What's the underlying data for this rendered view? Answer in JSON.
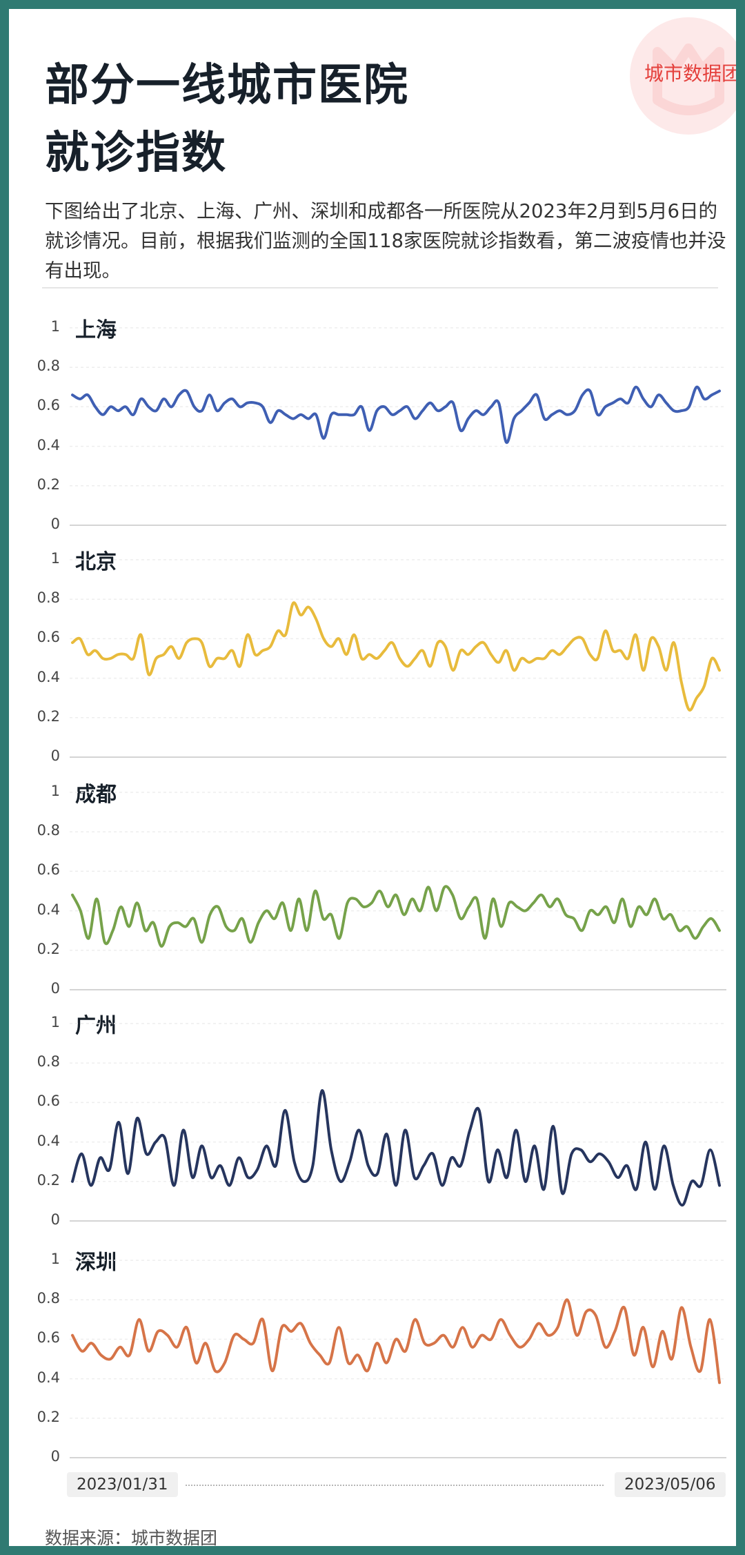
{
  "brand": {
    "name": "城市数据团"
  },
  "header": {
    "title_line1": "部分一线城市医院",
    "title_line2": "就诊指数",
    "intro": "下图给出了北京、上海、广州、深圳和成都各一所医院从2023年2月到5月6日的就诊情况。目前，根据我们监测的全国118家医院就诊指数看，第二波疫情也并没有出现。"
  },
  "footer": {
    "date_start": "2023/01/31",
    "date_end": "2023/05/06",
    "source": "数据来源：城市数据团"
  },
  "chart_data": [
    {
      "type": "line",
      "title": "上海",
      "color": "#3f5fb3",
      "ylim": [
        0,
        1
      ],
      "yticks": [
        "1",
        "0.8",
        "0.6",
        "0.4",
        "0.2",
        "0"
      ],
      "x_start": "2023/01/31",
      "x_end": "2023/05/06",
      "values": [
        0.66,
        0.64,
        0.66,
        0.6,
        0.56,
        0.6,
        0.58,
        0.6,
        0.56,
        0.64,
        0.6,
        0.58,
        0.64,
        0.6,
        0.66,
        0.68,
        0.6,
        0.58,
        0.66,
        0.58,
        0.62,
        0.64,
        0.6,
        0.62,
        0.62,
        0.6,
        0.52,
        0.58,
        0.56,
        0.54,
        0.56,
        0.54,
        0.56,
        0.44,
        0.56,
        0.56,
        0.56,
        0.56,
        0.6,
        0.48,
        0.58,
        0.6,
        0.56,
        0.58,
        0.6,
        0.54,
        0.58,
        0.62,
        0.58,
        0.6,
        0.62,
        0.48,
        0.54,
        0.58,
        0.56,
        0.6,
        0.62,
        0.42,
        0.54,
        0.58,
        0.62,
        0.66,
        0.54,
        0.56,
        0.58,
        0.56,
        0.58,
        0.66,
        0.68,
        0.56,
        0.6,
        0.62,
        0.64,
        0.62,
        0.7,
        0.64,
        0.6,
        0.66,
        0.62,
        0.58,
        0.58,
        0.6,
        0.7,
        0.64,
        0.66,
        0.68
      ]
    },
    {
      "type": "line",
      "title": "北京",
      "color": "#e8bb3c",
      "ylim": [
        0,
        1
      ],
      "yticks": [
        "1",
        "0.8",
        "0.6",
        "0.4",
        "0.2",
        "0"
      ],
      "x_start": "2023/01/31",
      "x_end": "2023/05/06",
      "values": [
        0.58,
        0.6,
        0.52,
        0.54,
        0.5,
        0.5,
        0.52,
        0.52,
        0.5,
        0.62,
        0.42,
        0.5,
        0.52,
        0.56,
        0.5,
        0.58,
        0.6,
        0.58,
        0.46,
        0.5,
        0.5,
        0.54,
        0.46,
        0.62,
        0.52,
        0.54,
        0.56,
        0.64,
        0.62,
        0.78,
        0.72,
        0.76,
        0.7,
        0.6,
        0.56,
        0.6,
        0.52,
        0.62,
        0.5,
        0.52,
        0.5,
        0.54,
        0.58,
        0.5,
        0.46,
        0.5,
        0.54,
        0.46,
        0.58,
        0.56,
        0.44,
        0.54,
        0.52,
        0.56,
        0.58,
        0.52,
        0.48,
        0.54,
        0.44,
        0.5,
        0.48,
        0.5,
        0.5,
        0.54,
        0.52,
        0.56,
        0.6,
        0.6,
        0.52,
        0.5,
        0.64,
        0.54,
        0.54,
        0.5,
        0.62,
        0.44,
        0.6,
        0.56,
        0.44,
        0.58,
        0.38,
        0.24,
        0.3,
        0.36,
        0.5,
        0.44
      ]
    },
    {
      "type": "line",
      "title": "成都",
      "color": "#76a24a",
      "ylim": [
        0,
        1
      ],
      "yticks": [
        "1",
        "0.8",
        "0.6",
        "0.4",
        "0.2",
        "0"
      ],
      "x_start": "2023/01/31",
      "x_end": "2023/05/06",
      "values": [
        0.48,
        0.4,
        0.26,
        0.46,
        0.24,
        0.3,
        0.42,
        0.32,
        0.44,
        0.3,
        0.34,
        0.22,
        0.32,
        0.34,
        0.32,
        0.36,
        0.24,
        0.38,
        0.42,
        0.32,
        0.3,
        0.36,
        0.24,
        0.34,
        0.4,
        0.36,
        0.44,
        0.3,
        0.46,
        0.3,
        0.5,
        0.36,
        0.38,
        0.26,
        0.44,
        0.46,
        0.42,
        0.44,
        0.5,
        0.42,
        0.48,
        0.38,
        0.46,
        0.4,
        0.52,
        0.4,
        0.52,
        0.48,
        0.36,
        0.42,
        0.46,
        0.26,
        0.46,
        0.32,
        0.44,
        0.42,
        0.4,
        0.44,
        0.48,
        0.42,
        0.46,
        0.38,
        0.36,
        0.3,
        0.4,
        0.38,
        0.42,
        0.34,
        0.46,
        0.32,
        0.42,
        0.38,
        0.46,
        0.36,
        0.38,
        0.3,
        0.32,
        0.26,
        0.32,
        0.36,
        0.3
      ]
    },
    {
      "type": "line",
      "title": "广州",
      "color": "#26355e",
      "ylim": [
        0,
        1
      ],
      "yticks": [
        "1",
        "0.8",
        "0.6",
        "0.4",
        "0.2",
        "0"
      ],
      "x_start": "2023/01/31",
      "x_end": "2023/05/06",
      "values": [
        0.2,
        0.34,
        0.18,
        0.32,
        0.26,
        0.5,
        0.24,
        0.52,
        0.34,
        0.4,
        0.42,
        0.18,
        0.46,
        0.22,
        0.38,
        0.22,
        0.28,
        0.18,
        0.32,
        0.22,
        0.26,
        0.38,
        0.28,
        0.56,
        0.3,
        0.2,
        0.28,
        0.66,
        0.36,
        0.2,
        0.3,
        0.46,
        0.28,
        0.24,
        0.44,
        0.18,
        0.46,
        0.22,
        0.28,
        0.34,
        0.18,
        0.32,
        0.28,
        0.46,
        0.56,
        0.2,
        0.36,
        0.22,
        0.46,
        0.2,
        0.38,
        0.16,
        0.48,
        0.14,
        0.34,
        0.36,
        0.3,
        0.34,
        0.3,
        0.22,
        0.28,
        0.16,
        0.4,
        0.16,
        0.38,
        0.18,
        0.08,
        0.2,
        0.18,
        0.36,
        0.18
      ]
    },
    {
      "type": "line",
      "title": "深圳",
      "color": "#d67448",
      "ylim": [
        0,
        1
      ],
      "yticks": [
        "1",
        "0.8",
        "0.6",
        "0.4",
        "0.2",
        "0"
      ],
      "x_start": "2023/01/31",
      "x_end": "2023/05/06",
      "values": [
        0.62,
        0.54,
        0.58,
        0.52,
        0.5,
        0.56,
        0.52,
        0.7,
        0.54,
        0.64,
        0.62,
        0.56,
        0.66,
        0.48,
        0.58,
        0.44,
        0.48,
        0.62,
        0.6,
        0.58,
        0.7,
        0.44,
        0.66,
        0.64,
        0.68,
        0.58,
        0.52,
        0.48,
        0.66,
        0.48,
        0.52,
        0.44,
        0.58,
        0.48,
        0.6,
        0.54,
        0.7,
        0.58,
        0.58,
        0.62,
        0.56,
        0.66,
        0.56,
        0.62,
        0.6,
        0.7,
        0.62,
        0.56,
        0.6,
        0.68,
        0.62,
        0.66,
        0.8,
        0.62,
        0.74,
        0.72,
        0.56,
        0.64,
        0.76,
        0.52,
        0.66,
        0.46,
        0.64,
        0.5,
        0.76,
        0.56,
        0.44,
        0.7,
        0.38
      ]
    }
  ]
}
